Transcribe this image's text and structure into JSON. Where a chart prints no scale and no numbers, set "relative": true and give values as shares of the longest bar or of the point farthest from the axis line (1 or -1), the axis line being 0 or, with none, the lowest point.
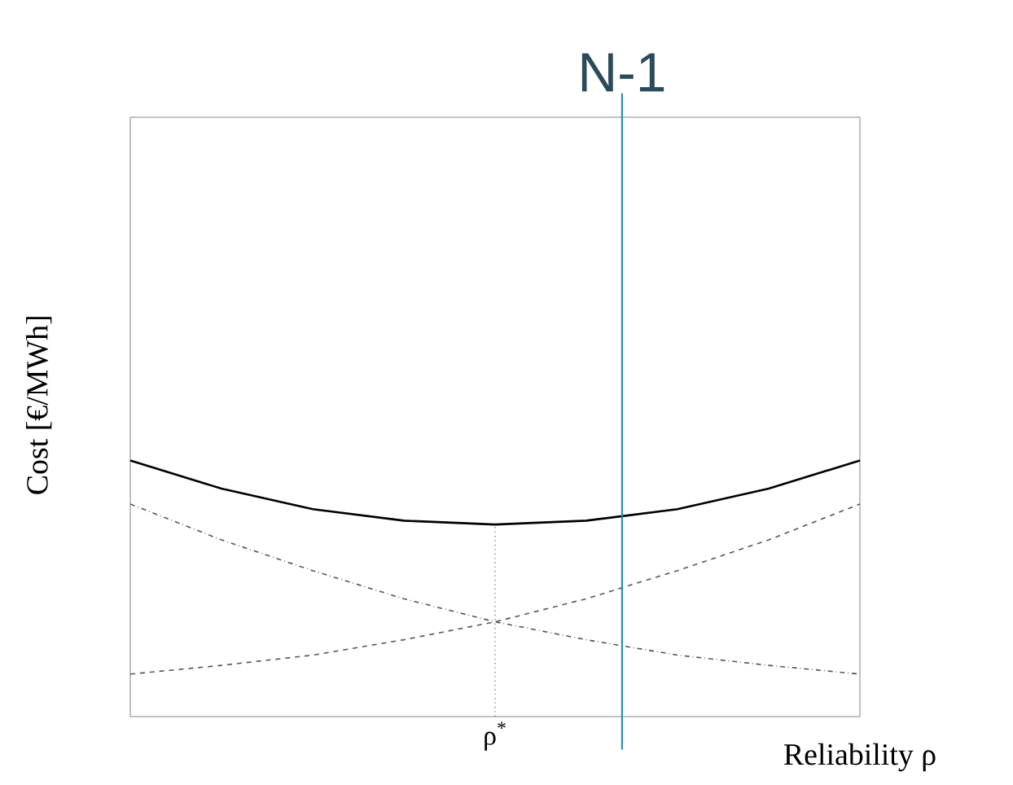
{
  "chart_data": {
    "type": "line",
    "relative": true,
    "xlabel": "Reliability ρ",
    "ylabel": "Cost [€/MWh]",
    "categories": [
      null,
      null,
      null,
      null,
      null,
      null,
      null,
      null,
      null
    ],
    "annotations": [
      "ρ$^{*}$",
      "N-1"
    ],
    "series": [
      {
        "color": "#000000",
        "line_style": "solid",
        "values": [
          1,
          0.89,
          0.81,
          0.765,
          0.75,
          0.765,
          0.81,
          0.89,
          1
        ]
      },
      {
        "color": "#555555",
        "line_style": "dashdot",
        "values": [
          0.83,
          0.69,
          0.57,
          0.46,
          0.37,
          0.3,
          0.24,
          0.2,
          0.166
        ]
      },
      {
        "color": "#555555",
        "line_style": "dashed",
        "values": [
          0.166,
          0.2,
          0.24,
          0.3,
          0.37,
          0.46,
          0.57,
          0.69,
          0.83
        ]
      }
    ]
  }
}
